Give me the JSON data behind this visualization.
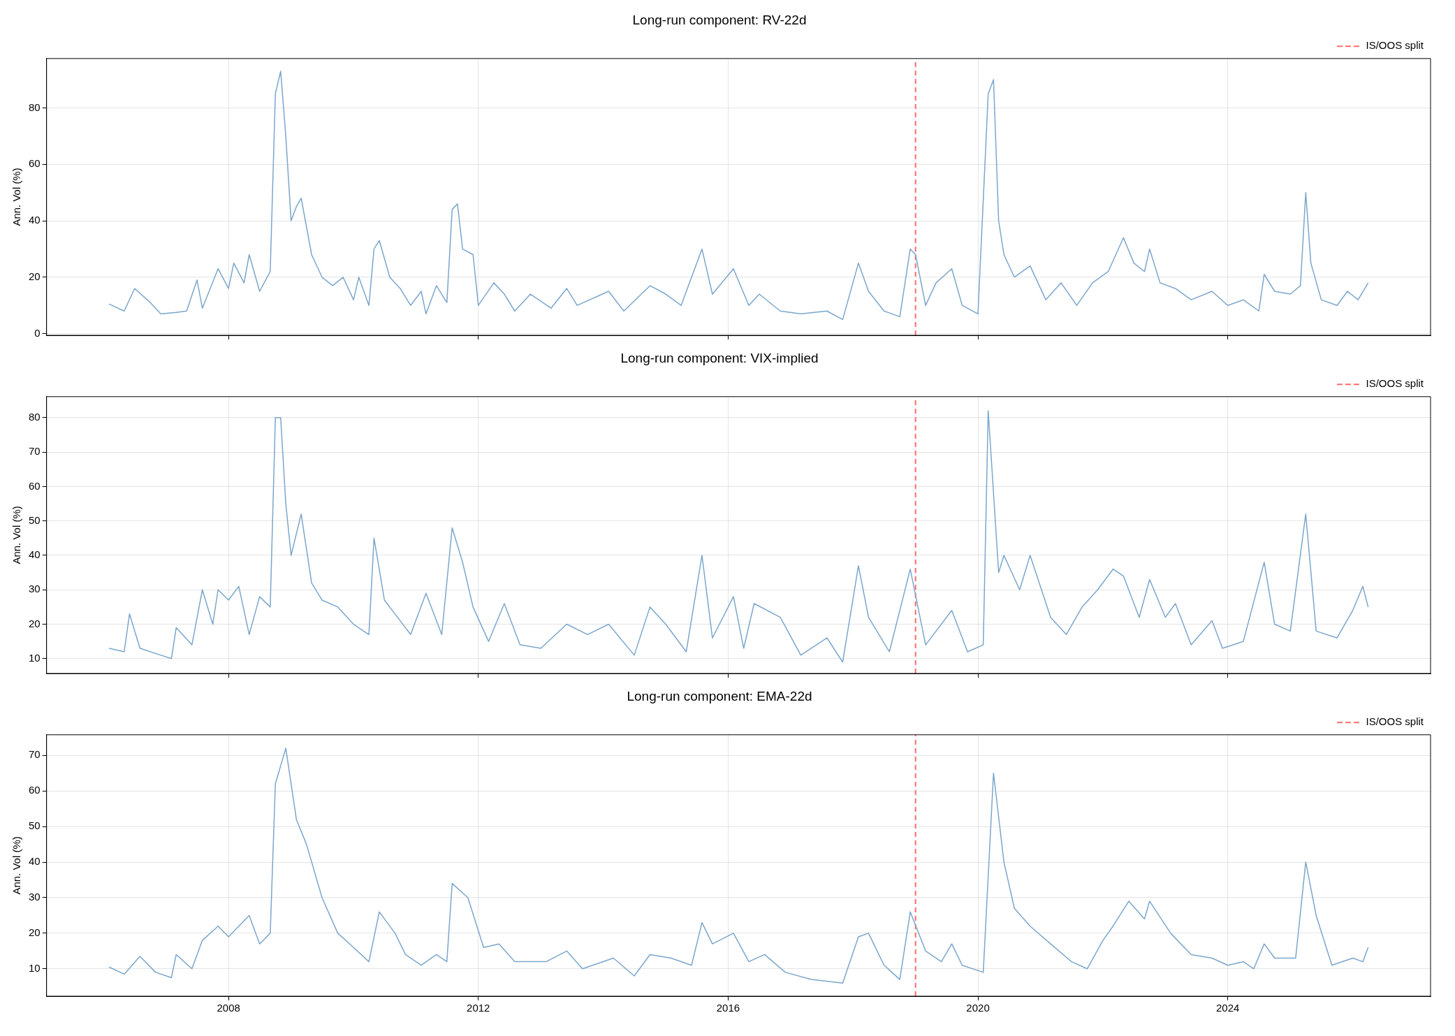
{
  "chart_data": [
    {
      "type": "line",
      "title": "Long-run component: RV-22d",
      "ylabel": "Ann. Vol (%)",
      "xlim": [
        "2005-02",
        "2027-04"
      ],
      "xticks": [
        "2008",
        "2012",
        "2016",
        "2020",
        "2024"
      ],
      "ylim": [
        -0.6,
        97.5
      ],
      "yticks": [
        0,
        20,
        40,
        60,
        80
      ],
      "grid": true,
      "legend": "top right",
      "tick_labels": "y",
      "marker": "none",
      "x": [
        "2006-02",
        "2006-05",
        "2006-07",
        "2006-10",
        "2006-12",
        "2007-03",
        "2007-05",
        "2007-07",
        "2007-08",
        "2007-11",
        "2008-01",
        "2008-02",
        "2008-04",
        "2008-05",
        "2008-07",
        "2008-09",
        "2008-10",
        "2008-11",
        "2008-12",
        "2009-01",
        "2009-02",
        "2009-03",
        "2009-05",
        "2009-07",
        "2009-09",
        "2009-11",
        "2010-01",
        "2010-02",
        "2010-04",
        "2010-05",
        "2010-06",
        "2010-08",
        "2010-10",
        "2010-12",
        "2011-02",
        "2011-03",
        "2011-05",
        "2011-07",
        "2011-08",
        "2011-09",
        "2011-10",
        "2011-12",
        "2012-01",
        "2012-04",
        "2012-06",
        "2012-08",
        "2012-11",
        "2013-03",
        "2013-06",
        "2013-08",
        "2014-02",
        "2014-05",
        "2014-10",
        "2015-01",
        "2015-04",
        "2015-08",
        "2015-10",
        "2016-02",
        "2016-05",
        "2016-07",
        "2016-11",
        "2017-03",
        "2017-08",
        "2017-11",
        "2018-02",
        "2018-04",
        "2018-07",
        "2018-10",
        "2018-12",
        "2019-01",
        "2019-03",
        "2019-05",
        "2019-08",
        "2019-10",
        "2020-01",
        "2020-03",
        "2020-04",
        "2020-05",
        "2020-06",
        "2020-08",
        "2020-11",
        "2021-02",
        "2021-05",
        "2021-08",
        "2021-11",
        "2022-02",
        "2022-05",
        "2022-07",
        "2022-09",
        "2022-10",
        "2022-12",
        "2023-03",
        "2023-06",
        "2023-10",
        "2024-01",
        "2024-04",
        "2024-07",
        "2024-08",
        "2024-10",
        "2025-01",
        "2025-03",
        "2025-04",
        "2025-05",
        "2025-07",
        "2025-10",
        "2025-12",
        "2026-02",
        "2026-04"
      ],
      "series": [
        {
          "color": "#7ba6cc",
          "values": [
            10.5,
            8,
            16,
            11,
            7,
            7.5,
            8,
            19,
            9,
            23,
            16,
            25,
            18,
            28,
            15,
            22,
            85,
            93,
            70,
            40,
            45,
            48,
            28,
            20,
            17,
            20,
            12,
            20,
            10,
            30,
            33,
            20,
            16,
            10,
            15,
            7,
            17,
            11,
            44,
            46,
            30,
            28,
            10,
            18,
            14,
            8,
            14,
            9,
            16,
            10,
            15,
            8,
            17,
            14,
            10,
            30,
            14,
            23,
            10,
            14,
            8,
            7,
            8,
            5,
            25,
            15,
            8,
            6,
            30,
            28,
            10,
            18,
            23,
            10,
            7,
            85,
            90,
            40,
            28,
            20,
            24,
            12,
            18,
            10,
            18,
            22,
            34,
            25,
            22,
            30,
            18,
            16,
            12,
            15,
            10,
            12,
            8,
            21,
            15,
            14,
            17,
            50,
            25,
            12,
            10,
            15,
            12,
            18
          ]
        }
      ],
      "ref_lines": [
        {
          "axis": "x",
          "value": "2019-01",
          "label": "IS/OOS split",
          "color": "#ff6b6b",
          "line_style": "dashed"
        }
      ]
    },
    {
      "type": "line",
      "title": "Long-run component: VIX-implied",
      "ylabel": "Ann. Vol (%)",
      "xlim": [
        "2005-02",
        "2027-04"
      ],
      "xticks": [
        "2008",
        "2012",
        "2016",
        "2020",
        "2024"
      ],
      "ylim": [
        5.7,
        86.1
      ],
      "yticks": [
        10,
        20,
        30,
        40,
        50,
        60,
        70,
        80
      ],
      "grid": true,
      "legend": "top right",
      "tick_labels": "y",
      "marker": "none",
      "x": [
        "2006-02",
        "2006-05",
        "2006-06",
        "2006-08",
        "2006-12",
        "2007-02",
        "2007-03",
        "2007-06",
        "2007-08",
        "2007-10",
        "2007-11",
        "2008-01",
        "2008-03",
        "2008-05",
        "2008-07",
        "2008-09",
        "2008-10",
        "2008-11",
        "2008-12",
        "2009-01",
        "2009-03",
        "2009-05",
        "2009-07",
        "2009-10",
        "2010-01",
        "2010-04",
        "2010-05",
        "2010-07",
        "2010-10",
        "2010-12",
        "2011-03",
        "2011-06",
        "2011-08",
        "2011-10",
        "2011-12",
        "2012-03",
        "2012-06",
        "2012-09",
        "2013-01",
        "2013-06",
        "2013-10",
        "2014-02",
        "2014-07",
        "2014-10",
        "2015-01",
        "2015-05",
        "2015-08",
        "2015-10",
        "2016-02",
        "2016-04",
        "2016-06",
        "2016-11",
        "2017-03",
        "2017-08",
        "2017-11",
        "2018-02",
        "2018-04",
        "2018-08",
        "2018-12",
        "2019-03",
        "2019-08",
        "2019-11",
        "2020-02",
        "2020-03",
        "2020-05",
        "2020-06",
        "2020-09",
        "2020-11",
        "2021-03",
        "2021-06",
        "2021-09",
        "2021-12",
        "2022-03",
        "2022-05",
        "2022-08",
        "2022-10",
        "2023-01",
        "2023-03",
        "2023-06",
        "2023-10",
        "2023-12",
        "2024-04",
        "2024-08",
        "2024-10",
        "2025-01",
        "2025-04",
        "2025-06",
        "2025-10",
        "2026-01",
        "2026-03",
        "2026-04"
      ],
      "series": [
        {
          "color": "#7ba6cc",
          "values": [
            13,
            12,
            23,
            13,
            11,
            10,
            19,
            14,
            30,
            20,
            30,
            27,
            31,
            17,
            28,
            25,
            80,
            80,
            55,
            40,
            52,
            32,
            27,
            25,
            20,
            17,
            45,
            27,
            21,
            17,
            29,
            17,
            48,
            38,
            25,
            15,
            26,
            14,
            13,
            20,
            17,
            20,
            11,
            25,
            20,
            12,
            40,
            16,
            28,
            13,
            26,
            22,
            11,
            16,
            9,
            37,
            22,
            12,
            36,
            14,
            24,
            12,
            14,
            82,
            35,
            40,
            30,
            40,
            22,
            17,
            25,
            30,
            36,
            34,
            22,
            33,
            22,
            26,
            14,
            21,
            13,
            15,
            38,
            20,
            18,
            52,
            18,
            16,
            24,
            31,
            25
          ]
        }
      ],
      "ref_lines": [
        {
          "axis": "x",
          "value": "2019-01",
          "label": "IS/OOS split",
          "color": "#ff6b6b",
          "line_style": "dashed"
        }
      ]
    },
    {
      "type": "line",
      "title": "Long-run component: EMA-22d",
      "ylabel": "Ann. Vol (%)",
      "xlim": [
        "2005-02",
        "2027-04"
      ],
      "xticks": [
        "2008",
        "2012",
        "2016",
        "2020",
        "2024"
      ],
      "ylim": [
        2.3,
        75.8
      ],
      "yticks": [
        10,
        20,
        30,
        40,
        50,
        60,
        70
      ],
      "grid": true,
      "legend": "top right",
      "marker": "none",
      "x": [
        "2006-02",
        "2006-05",
        "2006-08",
        "2006-11",
        "2007-02",
        "2007-03",
        "2007-06",
        "2007-08",
        "2007-11",
        "2008-01",
        "2008-05",
        "2008-07",
        "2008-09",
        "2008-10",
        "2008-12",
        "2009-02",
        "2009-04",
        "2009-07",
        "2009-10",
        "2010-01",
        "2010-04",
        "2010-06",
        "2010-09",
        "2010-11",
        "2011-02",
        "2011-05",
        "2011-07",
        "2011-08",
        "2011-11",
        "2012-02",
        "2012-05",
        "2012-08",
        "2013-02",
        "2013-06",
        "2013-09",
        "2014-03",
        "2014-07",
        "2014-10",
        "2015-02",
        "2015-06",
        "2015-08",
        "2015-10",
        "2016-02",
        "2016-05",
        "2016-08",
        "2016-12",
        "2017-05",
        "2017-11",
        "2018-02",
        "2018-04",
        "2018-07",
        "2018-10",
        "2018-12",
        "2019-03",
        "2019-06",
        "2019-08",
        "2019-10",
        "2020-02",
        "2020-04",
        "2020-06",
        "2020-08",
        "2020-11",
        "2021-03",
        "2021-07",
        "2021-10",
        "2022-01",
        "2022-03",
        "2022-06",
        "2022-09",
        "2022-10",
        "2023-02",
        "2023-06",
        "2023-10",
        "2024-01",
        "2024-04",
        "2024-06",
        "2024-08",
        "2024-10",
        "2025-02",
        "2025-04",
        "2025-06",
        "2025-09",
        "2026-01",
        "2026-03",
        "2026-04"
      ],
      "series": [
        {
          "color": "#7ba6cc",
          "values": [
            10.5,
            8.5,
            13.5,
            9,
            7.5,
            14,
            10,
            18,
            22,
            19,
            25,
            17,
            20,
            62,
            72,
            52,
            45,
            30,
            20,
            16,
            12,
            26,
            20,
            14,
            11,
            14,
            12,
            34,
            30,
            16,
            17,
            12,
            12,
            15,
            10,
            13,
            8,
            14,
            13,
            11,
            23,
            17,
            20,
            12,
            14,
            9,
            7,
            6,
            19,
            20,
            11,
            7,
            26,
            15,
            12,
            17,
            11,
            9,
            65,
            40,
            27,
            22,
            17,
            12,
            10,
            18,
            22,
            29,
            24,
            29,
            20,
            14,
            13,
            11,
            12,
            10,
            17,
            13,
            13,
            40,
            25,
            11,
            13,
            12,
            16
          ]
        }
      ],
      "ref_lines": [
        {
          "axis": "x",
          "value": "2019-01",
          "label": "IS/OOS split",
          "color": "#ff6b6b",
          "line_style": "dashed"
        }
      ]
    }
  ]
}
